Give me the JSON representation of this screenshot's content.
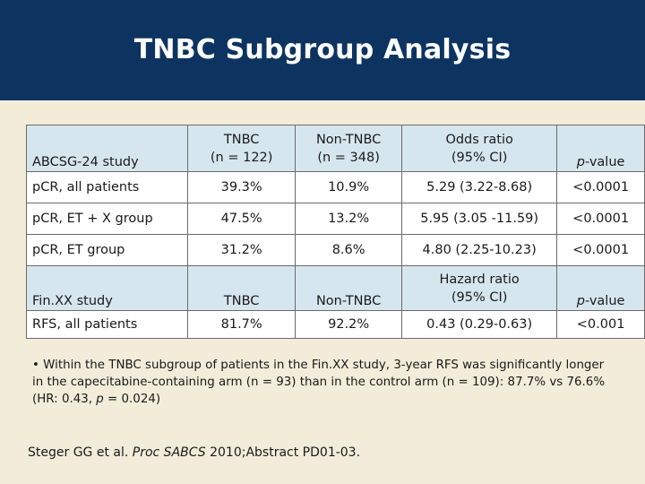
{
  "title": "TNBC Subgroup Analysis",
  "table1": {
    "headers": {
      "study": "ABCSG-24 study",
      "tnbc_1": "TNBC",
      "tnbc_2": "(n = 122)",
      "nontnbc_1": "Non-TNBC",
      "nontnbc_2": "(n = 348)",
      "ratio_1": "Odds ratio",
      "ratio_2": "(95% CI)",
      "pvalue_p": "p",
      "pvalue_rest": "-value"
    },
    "rows": [
      {
        "label": "pCR, all patients",
        "tnbc": "39.3%",
        "nontnbc": "10.9%",
        "ratio": "5.29 (3.22-8.68)",
        "p": "<0.0001"
      },
      {
        "label": "pCR, ET + X group",
        "tnbc": "47.5%",
        "nontnbc": "13.2%",
        "ratio": "5.95 (3.05 -11.59)",
        "p": "<0.0001"
      },
      {
        "label": "pCR, ET group",
        "tnbc": "31.2%",
        "nontnbc": "8.6%",
        "ratio": "4.80 (2.25-10.23)",
        "p": "<0.0001"
      }
    ]
  },
  "table2": {
    "headers": {
      "study": "Fin.XX study",
      "tnbc": "TNBC",
      "nontnbc": "Non-TNBC",
      "ratio_1": "Hazard ratio",
      "ratio_2": "(95% CI)",
      "pvalue_p": "p",
      "pvalue_rest": "-value"
    },
    "rows": [
      {
        "label": "RFS, all patients",
        "tnbc": "81.7%",
        "nontnbc": "92.2%",
        "ratio": "0.43 (0.29-0.63)",
        "p": "<0.001"
      }
    ]
  },
  "note": {
    "bullet": "•",
    "text_before_p": "Within the TNBC subgroup of patients in the Fin.XX study, 3-year RFS was significantly longer in the capecitabine-containing arm (n = 93) than in the control arm (n = 109): 87.7% vs 76.6% (HR: 0.43, ",
    "p": "p",
    "text_after_p": " = 0.024)"
  },
  "citation": {
    "authors": "Steger GG et al. ",
    "journal": "Proc SABCS",
    "rest": " 2010;Abstract PD01-03."
  }
}
